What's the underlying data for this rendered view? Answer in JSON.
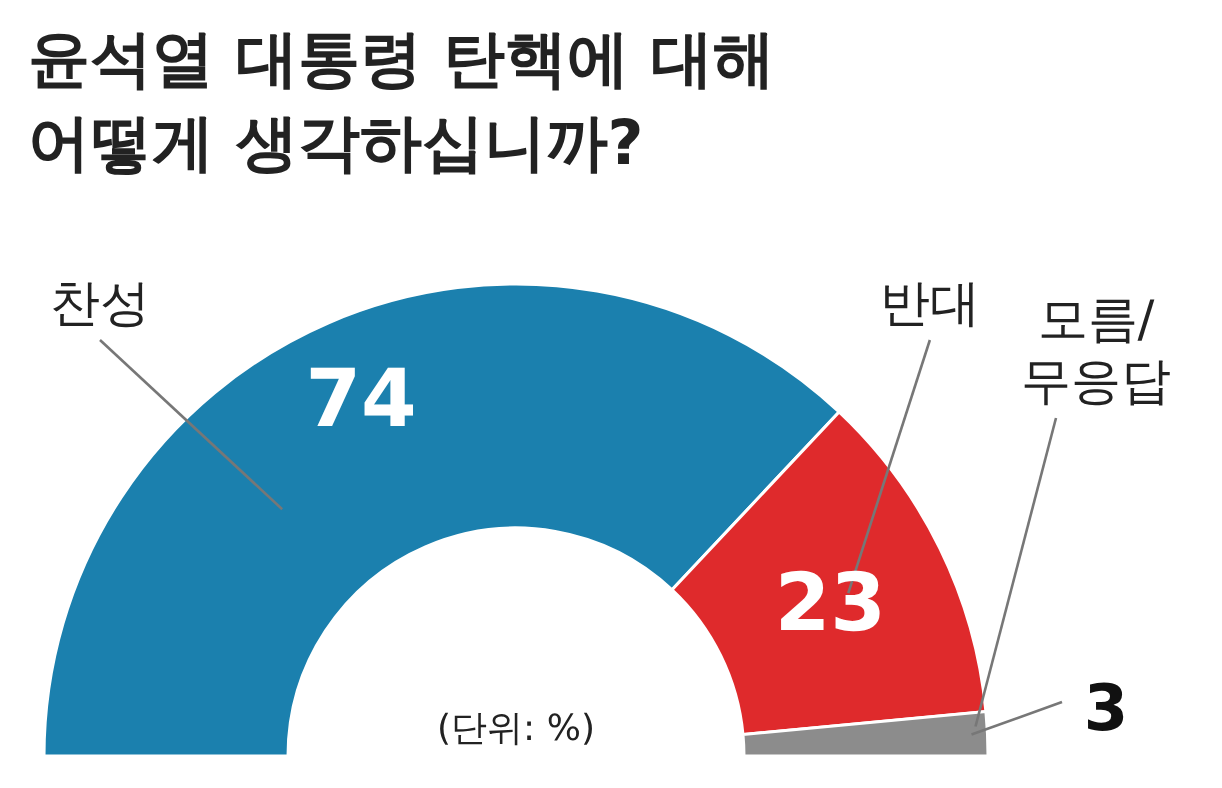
{
  "chart_data": {
    "type": "donut",
    "title": "윤석열 대통령 탄핵에 대해\n어떻게 생각하십니까?",
    "categories": [
      "찬성",
      "반대",
      "모름/\n무응답"
    ],
    "values": [
      74,
      23,
      3
    ],
    "colors": [
      "#1b80ae",
      "#df2a2c",
      "#8c8c8c"
    ],
    "data_labels": true,
    "annotations": [
      "(단위: %)"
    ]
  }
}
